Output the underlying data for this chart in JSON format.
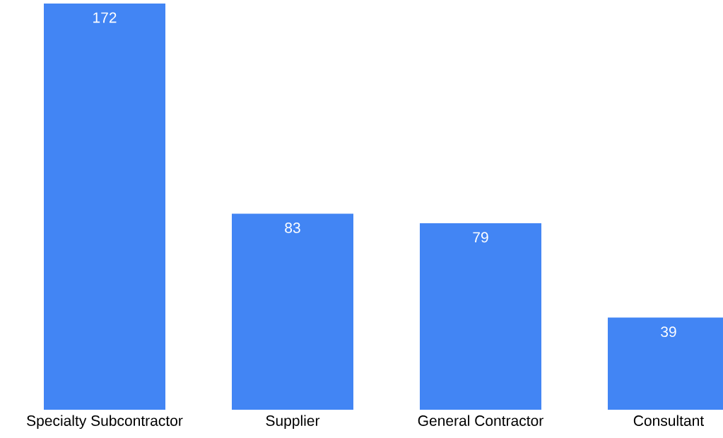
{
  "chart_data": {
    "type": "bar",
    "categories": [
      "Specialty Subcontractor",
      "Supplier",
      "General Contractor",
      "Consultant"
    ],
    "values": [
      172,
      83,
      79,
      39
    ],
    "color": "#4285f4",
    "data_labels": true
  }
}
